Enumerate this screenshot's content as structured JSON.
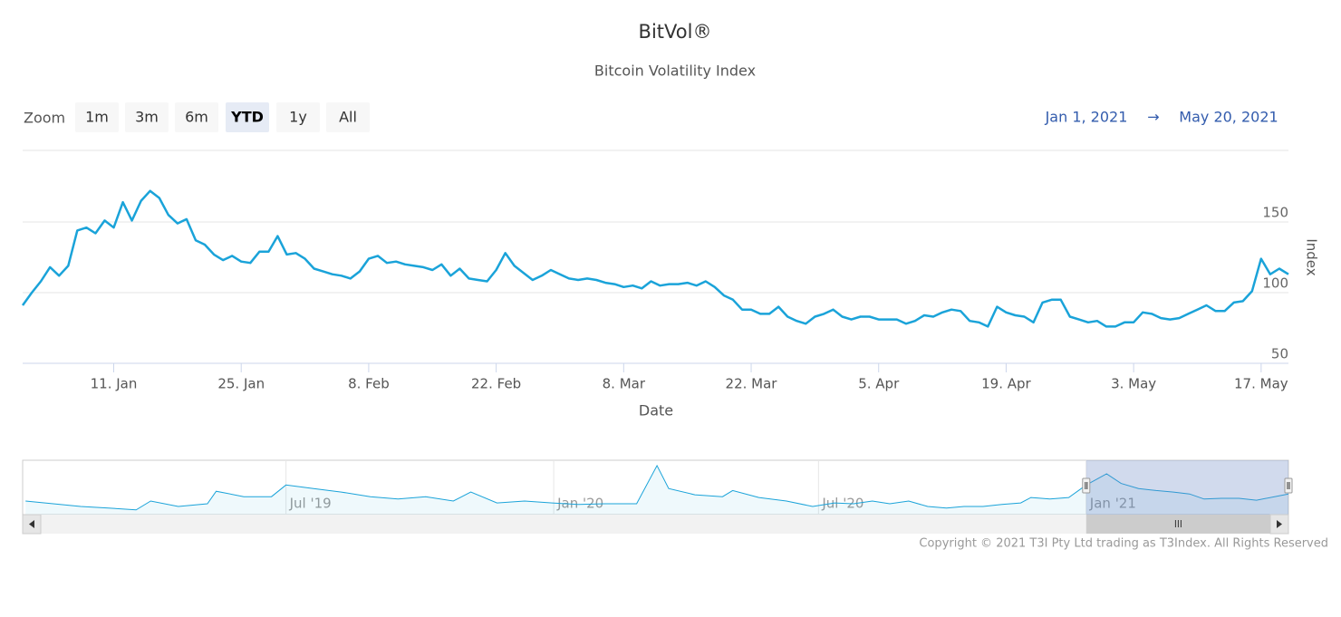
{
  "chart_data": [
    {
      "type": "line",
      "title": "BitVol®",
      "subtitle": "Bitcoin Volatility Index",
      "x_label": "Date",
      "y_label": "Index",
      "color": "#1aa3d9",
      "grid": true,
      "y_axis_side": "right",
      "xlim": [
        "2021-01-01",
        "2021-05-20"
      ],
      "xticks": [
        {
          "value": "2021-01-11",
          "label": "11. Jan"
        },
        {
          "value": "2021-01-25",
          "label": "25. Jan"
        },
        {
          "value": "2021-02-08",
          "label": "8. Feb"
        },
        {
          "value": "2021-02-22",
          "label": "22. Feb"
        },
        {
          "value": "2021-03-08",
          "label": "8. Mar"
        },
        {
          "value": "2021-03-22",
          "label": "22. Mar"
        },
        {
          "value": "2021-04-05",
          "label": "5. Apr"
        },
        {
          "value": "2021-04-19",
          "label": "19. Apr"
        },
        {
          "value": "2021-05-03",
          "label": "3. May"
        },
        {
          "value": "2021-05-17",
          "label": "17. May"
        }
      ],
      "ylim": [
        50,
        200
      ],
      "yticks": [
        50,
        100,
        150
      ],
      "x": [
        "2021-01-01",
        "2021-01-02",
        "2021-01-03",
        "2021-01-04",
        "2021-01-05",
        "2021-01-06",
        "2021-01-07",
        "2021-01-08",
        "2021-01-09",
        "2021-01-10",
        "2021-01-11",
        "2021-01-12",
        "2021-01-13",
        "2021-01-14",
        "2021-01-15",
        "2021-01-16",
        "2021-01-17",
        "2021-01-18",
        "2021-01-19",
        "2021-01-20",
        "2021-01-21",
        "2021-01-22",
        "2021-01-23",
        "2021-01-24",
        "2021-01-25",
        "2021-01-26",
        "2021-01-27",
        "2021-01-28",
        "2021-01-29",
        "2021-01-30",
        "2021-01-31",
        "2021-02-01",
        "2021-02-02",
        "2021-02-03",
        "2021-02-04",
        "2021-02-05",
        "2021-02-06",
        "2021-02-07",
        "2021-02-08",
        "2021-02-09",
        "2021-02-10",
        "2021-02-11",
        "2021-02-12",
        "2021-02-13",
        "2021-02-14",
        "2021-02-15",
        "2021-02-16",
        "2021-02-17",
        "2021-02-18",
        "2021-02-19",
        "2021-02-20",
        "2021-02-21",
        "2021-02-22",
        "2021-02-23",
        "2021-02-24",
        "2021-02-25",
        "2021-02-26",
        "2021-02-27",
        "2021-02-28",
        "2021-03-01",
        "2021-03-02",
        "2021-03-03",
        "2021-03-04",
        "2021-03-05",
        "2021-03-06",
        "2021-03-07",
        "2021-03-08",
        "2021-03-09",
        "2021-03-10",
        "2021-03-11",
        "2021-03-12",
        "2021-03-13",
        "2021-03-14",
        "2021-03-15",
        "2021-03-16",
        "2021-03-17",
        "2021-03-18",
        "2021-03-19",
        "2021-03-20",
        "2021-03-21",
        "2021-03-22",
        "2021-03-23",
        "2021-03-24",
        "2021-03-25",
        "2021-03-26",
        "2021-03-27",
        "2021-03-28",
        "2021-03-29",
        "2021-03-30",
        "2021-03-31",
        "2021-04-01",
        "2021-04-02",
        "2021-04-03",
        "2021-04-04",
        "2021-04-05",
        "2021-04-06",
        "2021-04-07",
        "2021-04-08",
        "2021-04-09",
        "2021-04-10",
        "2021-04-11",
        "2021-04-12",
        "2021-04-13",
        "2021-04-14",
        "2021-04-15",
        "2021-04-16",
        "2021-04-17",
        "2021-04-18",
        "2021-04-19",
        "2021-04-20",
        "2021-04-21",
        "2021-04-22",
        "2021-04-23",
        "2021-04-24",
        "2021-04-25",
        "2021-04-26",
        "2021-04-27",
        "2021-04-28",
        "2021-04-29",
        "2021-04-30",
        "2021-05-01",
        "2021-05-02",
        "2021-05-03",
        "2021-05-04",
        "2021-05-05",
        "2021-05-06",
        "2021-05-07",
        "2021-05-08",
        "2021-05-09",
        "2021-05-10",
        "2021-05-11",
        "2021-05-12",
        "2021-05-13",
        "2021-05-14",
        "2021-05-15",
        "2021-05-16",
        "2021-05-17",
        "2021-05-18",
        "2021-05-19",
        "2021-05-20"
      ],
      "values": [
        91,
        100,
        108,
        118,
        112,
        119,
        144,
        146,
        142,
        151,
        146,
        164,
        151,
        165,
        172,
        167,
        155,
        149,
        152,
        137,
        134,
        127,
        123,
        126,
        122,
        121,
        129,
        129,
        140,
        127,
        128,
        124,
        117,
        115,
        113,
        112,
        110,
        115,
        124,
        126,
        121,
        122,
        120,
        119,
        118,
        116,
        120,
        112,
        117,
        110,
        109,
        108,
        116,
        128,
        119,
        114,
        109,
        112,
        116,
        113,
        110,
        109,
        110,
        109,
        107,
        106,
        104,
        105,
        103,
        108,
        105,
        106,
        106,
        107,
        105,
        108,
        104,
        98,
        95,
        88,
        88,
        85,
        85,
        90,
        83,
        80,
        78,
        83,
        85,
        88,
        83,
        81,
        83,
        83,
        81,
        81,
        81,
        78,
        80,
        84,
        83,
        86,
        88,
        87,
        80,
        79,
        76,
        90,
        86,
        84,
        83,
        79,
        93,
        95,
        95,
        83,
        81,
        79,
        80,
        76,
        76,
        79,
        79,
        86,
        85,
        82,
        81,
        82,
        85,
        88,
        91,
        87,
        87,
        93,
        94,
        101,
        124,
        113,
        117,
        113
      ]
    },
    {
      "type": "area",
      "color": "#1aa3d9",
      "grid": true,
      "xlim": [
        "2019-01-01",
        "2021-05-20"
      ],
      "ylim": [
        60,
        195
      ],
      "xticks": [
        {
          "value": "2019-07-01",
          "label": "Jul '19"
        },
        {
          "value": "2020-01-01",
          "label": "Jan '20"
        },
        {
          "value": "2020-07-01",
          "label": "Jul '20"
        },
        {
          "value": "2021-01-01",
          "label": "Jan '21"
        }
      ],
      "x": [
        "2019-01-03",
        "2019-01-22",
        "2019-02-10",
        "2019-03-01",
        "2019-03-20",
        "2019-03-30",
        "2019-04-18",
        "2019-05-08",
        "2019-05-14",
        "2019-06-02",
        "2019-06-21",
        "2019-07-01",
        "2019-07-20",
        "2019-08-08",
        "2019-08-28",
        "2019-09-16",
        "2019-10-05",
        "2019-10-24",
        "2019-11-05",
        "2019-11-23",
        "2019-12-12",
        "2019-12-31",
        "2020-01-18",
        "2020-02-05",
        "2020-02-27",
        "2020-03-12",
        "2020-03-20",
        "2020-04-07",
        "2020-04-26",
        "2020-05-03",
        "2020-05-21",
        "2020-06-09",
        "2020-06-27",
        "2020-07-12",
        "2020-07-25",
        "2020-08-07",
        "2020-08-19",
        "2020-09-01",
        "2020-09-14",
        "2020-09-27",
        "2020-10-09",
        "2020-10-22",
        "2020-11-04",
        "2020-11-17",
        "2020-11-24",
        "2020-12-07",
        "2020-12-20",
        "2021-01-01",
        "2021-01-15",
        "2021-01-25",
        "2021-02-06",
        "2021-02-18",
        "2021-03-02",
        "2021-03-13",
        "2021-03-23",
        "2021-04-04",
        "2021-04-16",
        "2021-04-28",
        "2021-05-20"
      ],
      "values": [
        95,
        88,
        81,
        77,
        72,
        95,
        81,
        88,
        120,
        106,
        106,
        136,
        127,
        118,
        106,
        100,
        106,
        95,
        118,
        90,
        95,
        90,
        86,
        88,
        88,
        186,
        127,
        111,
        106,
        122,
        104,
        95,
        81,
        90,
        88,
        95,
        88,
        95,
        81,
        77,
        81,
        81,
        86,
        90,
        104,
        100,
        104,
        136,
        165,
        140,
        127,
        122,
        118,
        113,
        100,
        102,
        102,
        97,
        113
      ]
    }
  ],
  "range_selector": {
    "label": "Zoom",
    "buttons": [
      "1m",
      "3m",
      "6m",
      "YTD",
      "1y",
      "All"
    ],
    "selected": 3,
    "from": "Jan 1, 2021",
    "separator": "→",
    "to": "May 20, 2021"
  },
  "credits": "Copyright © 2021 T3I Pty Ltd trading as T3Index. All Rights Reserved"
}
